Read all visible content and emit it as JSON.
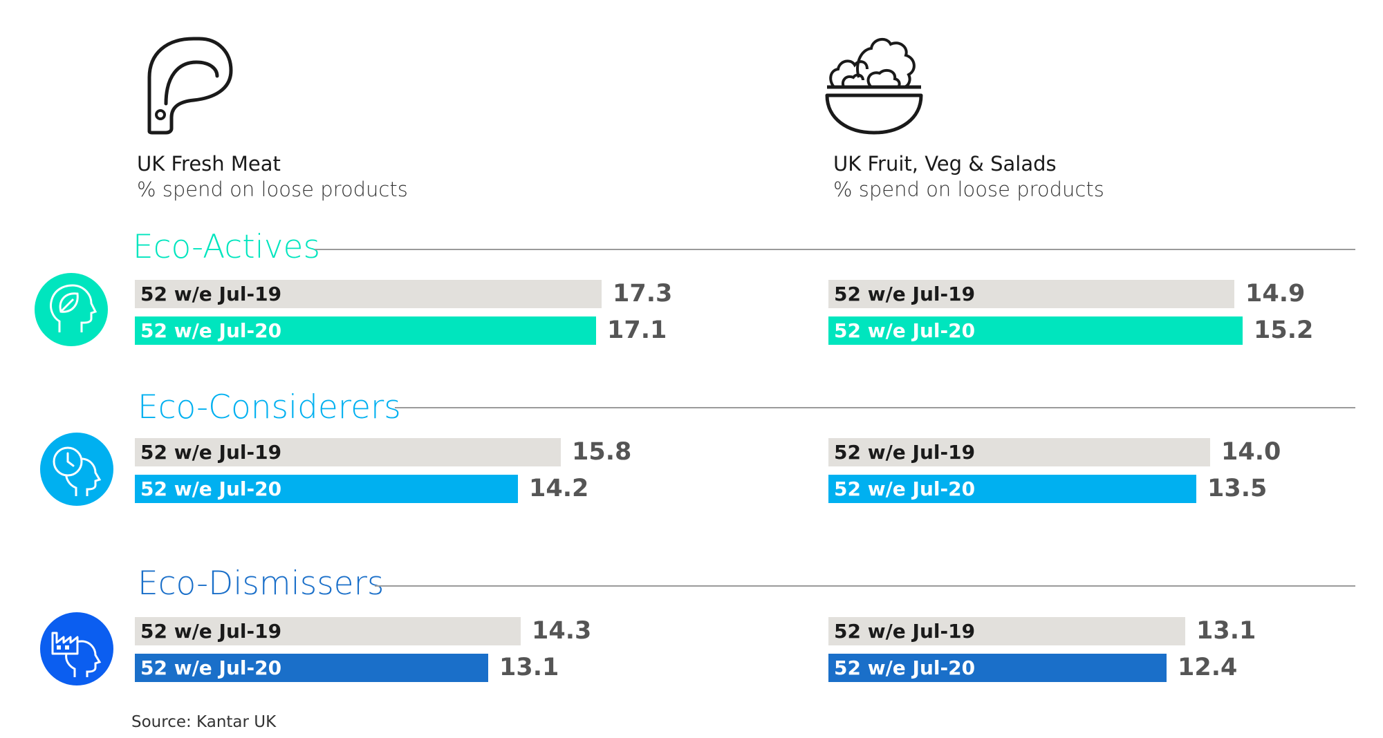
{
  "colors": {
    "baseline_bar": "#e2e0dc",
    "eco_actives": "#00e5be",
    "eco_considerers": "#00b0f0",
    "eco_dismissers": "#1a6fc9",
    "eco_dismissers_icon": "#0b5ef0"
  },
  "icons": {
    "meat": "meat-steak-icon",
    "produce": "salad-bowl-icon",
    "eco_actives": "leaf-head-icon",
    "eco_considerers": "clock-head-icon",
    "eco_dismissers": "factory-head-icon"
  },
  "chart_data": {
    "type": "bar",
    "orientation": "horizontal",
    "panels": [
      {
        "title": "UK Fresh Meat",
        "subtitle": "% spend on loose products"
      },
      {
        "title": "UK Fruit, Veg & Salads",
        "subtitle": "% spend on loose products"
      }
    ],
    "groups": [
      {
        "name": "Eco-Actives",
        "series": [
          {
            "name": "52 w/e Jul-19",
            "values": [
              17.3,
              14.9
            ]
          },
          {
            "name": "52 w/e Jul-20",
            "values": [
              17.1,
              15.2
            ]
          }
        ]
      },
      {
        "name": "Eco-Considerers",
        "series": [
          {
            "name": "52 w/e Jul-19",
            "values": [
              15.8,
              14.0
            ]
          },
          {
            "name": "52 w/e Jul-20",
            "values": [
              14.2,
              13.5
            ]
          }
        ]
      },
      {
        "name": "Eco-Dismissers",
        "series": [
          {
            "name": "52 w/e Jul-19",
            "values": [
              14.3,
              13.1
            ]
          },
          {
            "name": "52 w/e Jul-20",
            "values": [
              13.1,
              12.4
            ]
          }
        ]
      }
    ],
    "value_labels": [
      [
        "17.3",
        "17.1",
        "14.9",
        "15.2"
      ],
      [
        "15.8",
        "14.2",
        "14.0",
        "13.5"
      ],
      [
        "14.3",
        "13.1",
        "13.1",
        "12.4"
      ]
    ],
    "source": "Source: Kantar UK"
  }
}
